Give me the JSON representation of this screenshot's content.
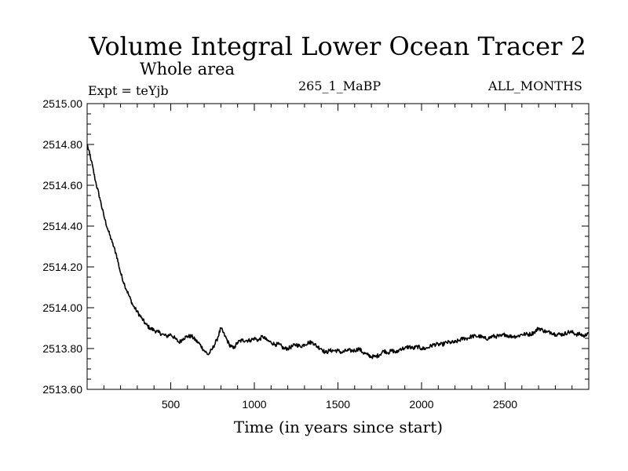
{
  "chart_data": {
    "type": "line",
    "title": "Volume Integral Lower Ocean Tracer 2",
    "subtitle": "Whole area",
    "experiment_label": "Expt = teYjb",
    "run_label": "265_1_MaBP",
    "period_label": "ALL_MONTHS",
    "xlabel": "Time (in years since start)",
    "ylabel": "",
    "xlim": [
      0,
      3000
    ],
    "ylim": [
      2513.6,
      2515.0
    ],
    "xticks": [
      500,
      1000,
      1500,
      2000,
      2500
    ],
    "xtick_labels": [
      "500",
      "1000",
      "1500",
      "2000",
      "2500"
    ],
    "yticks": [
      2513.6,
      2513.8,
      2514.0,
      2514.2,
      2514.4,
      2514.6,
      2514.8,
      2515.0
    ],
    "ytick_labels": [
      "2513.60",
      "2513.80",
      "2514.00",
      "2514.20",
      "2514.40",
      "2514.60",
      "2514.80",
      "2515.00"
    ],
    "grid": false,
    "series": [
      {
        "name": "Volume Integral Lower Ocean Tracer 2",
        "color": "#000000",
        "x": [
          0,
          25,
          50,
          75,
          100,
          125,
          150,
          175,
          200,
          225,
          250,
          275,
          300,
          325,
          350,
          375,
          400,
          425,
          450,
          475,
          500,
          525,
          550,
          575,
          600,
          625,
          650,
          675,
          700,
          725,
          750,
          775,
          800,
          825,
          850,
          875,
          900,
          925,
          950,
          975,
          1000,
          1025,
          1050,
          1075,
          1100,
          1125,
          1150,
          1175,
          1200,
          1225,
          1250,
          1275,
          1300,
          1325,
          1350,
          1375,
          1400,
          1425,
          1450,
          1475,
          1500,
          1525,
          1550,
          1575,
          1600,
          1625,
          1650,
          1675,
          1700,
          1725,
          1750,
          1775,
          1800,
          1825,
          1850,
          1875,
          1900,
          1925,
          1950,
          1975,
          2000,
          2025,
          2050,
          2075,
          2100,
          2125,
          2150,
          2175,
          2200,
          2225,
          2250,
          2275,
          2300,
          2325,
          2350,
          2375,
          2400,
          2425,
          2450,
          2475,
          2500,
          2525,
          2550,
          2575,
          2600,
          2625,
          2650,
          2675,
          2700,
          2725,
          2750,
          2775,
          2800,
          2825,
          2850,
          2875,
          2900,
          2925,
          2950,
          2975,
          2995
        ],
        "y": [
          2514.8,
          2514.72,
          2514.62,
          2514.54,
          2514.45,
          2514.38,
          2514.32,
          2514.26,
          2514.17,
          2514.11,
          2514.06,
          2514.01,
          2513.98,
          2513.95,
          2513.92,
          2513.9,
          2513.89,
          2513.88,
          2513.87,
          2513.86,
          2513.87,
          2513.85,
          2513.83,
          2513.85,
          2513.86,
          2513.86,
          2513.84,
          2513.82,
          2513.79,
          2513.77,
          2513.8,
          2513.84,
          2513.9,
          2513.86,
          2513.82,
          2513.8,
          2513.83,
          2513.84,
          2513.84,
          2513.84,
          2513.85,
          2513.84,
          2513.86,
          2513.84,
          2513.83,
          2513.82,
          2513.82,
          2513.8,
          2513.8,
          2513.81,
          2513.82,
          2513.81,
          2513.82,
          2513.83,
          2513.83,
          2513.81,
          2513.8,
          2513.78,
          2513.79,
          2513.79,
          2513.79,
          2513.78,
          2513.79,
          2513.79,
          2513.79,
          2513.8,
          2513.78,
          2513.77,
          2513.76,
          2513.76,
          2513.77,
          2513.79,
          2513.78,
          2513.79,
          2513.78,
          2513.8,
          2513.8,
          2513.81,
          2513.8,
          2513.81,
          2513.8,
          2513.8,
          2513.81,
          2513.82,
          2513.82,
          2513.82,
          2513.83,
          2513.83,
          2513.83,
          2513.84,
          2513.85,
          2513.85,
          2513.86,
          2513.86,
          2513.86,
          2513.85,
          2513.85,
          2513.86,
          2513.86,
          2513.86,
          2513.87,
          2513.86,
          2513.86,
          2513.86,
          2513.87,
          2513.87,
          2513.87,
          2513.88,
          2513.9,
          2513.89,
          2513.88,
          2513.88,
          2513.87,
          2513.87,
          2513.87,
          2513.88,
          2513.88,
          2513.87,
          2513.87,
          2513.86,
          2513.88
        ]
      }
    ]
  }
}
